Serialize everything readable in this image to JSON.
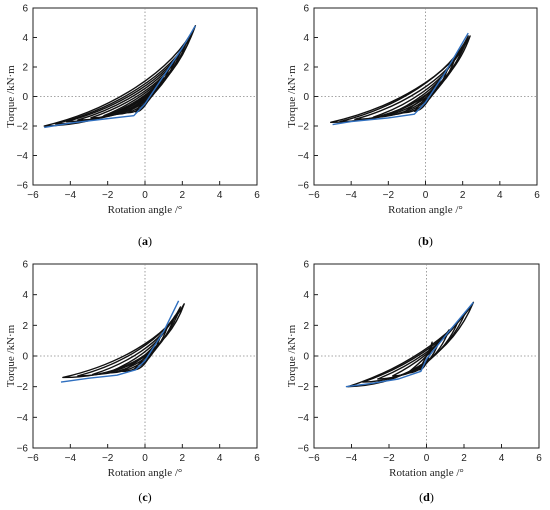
{
  "chart_data": [
    {
      "type": "line",
      "panel_label": "(a)",
      "panel_letter": "a",
      "xlabel": "Rotation angle /°",
      "ylabel": "Torque /kN·m",
      "xlim": [
        -6,
        6
      ],
      "ylim": [
        -6,
        6
      ],
      "xticks": [
        -6,
        -4,
        -2,
        0,
        2,
        4,
        6
      ],
      "yticks": [
        -6,
        -4,
        -2,
        0,
        2,
        4,
        6
      ],
      "reference_lines": "dotted lines at x=0 and y=0",
      "hysteresis_color": "#111111",
      "envelope_color": "#2f6fbf",
      "envelope": {
        "x": [
          -5.4,
          -4.0,
          -2.0,
          -0.6,
          0.0,
          1.0,
          2.0,
          2.7
        ],
        "y": [
          -2.1,
          -1.8,
          -1.5,
          -1.3,
          -0.5,
          1.4,
          3.3,
          4.8
        ]
      },
      "loops": [
        {
          "pos": [
            0.4,
            0.4
          ],
          "neg": [
            -0.5,
            -1.05
          ]
        },
        {
          "pos": [
            0.7,
            0.9
          ],
          "neg": [
            -0.9,
            -1.1
          ]
        },
        {
          "pos": [
            1.0,
            1.4
          ],
          "neg": [
            -1.5,
            -1.2
          ]
        },
        {
          "pos": [
            1.3,
            1.9
          ],
          "neg": [
            -2.2,
            -1.3
          ]
        },
        {
          "pos": [
            1.6,
            2.4
          ],
          "neg": [
            -2.9,
            -1.45
          ]
        },
        {
          "pos": [
            1.9,
            3.0
          ],
          "neg": [
            -3.6,
            -1.6
          ]
        },
        {
          "pos": [
            2.2,
            3.6
          ],
          "neg": [
            -4.2,
            -1.7
          ]
        },
        {
          "pos": [
            2.5,
            4.2
          ],
          "neg": [
            -4.8,
            -1.85
          ]
        },
        {
          "pos": [
            2.7,
            4.8
          ],
          "neg": [
            -5.4,
            -2.0
          ]
        }
      ]
    },
    {
      "type": "line",
      "panel_label": "(b)",
      "panel_letter": "b",
      "xlabel": "Rotation angle /°",
      "ylabel": "Torque /kN·m",
      "xlim": [
        -6,
        6
      ],
      "ylim": [
        -6,
        6
      ],
      "xticks": [
        -6,
        -4,
        -2,
        0,
        2,
        4,
        6
      ],
      "yticks": [
        -6,
        -4,
        -2,
        0,
        2,
        4,
        6
      ],
      "reference_lines": "dotted lines at x=0 and y=0",
      "hysteresis_color": "#111111",
      "envelope_color": "#2f6fbf",
      "envelope": {
        "x": [
          -5.0,
          -4.0,
          -2.0,
          -0.6,
          0.0,
          1.0,
          2.3
        ],
        "y": [
          -1.9,
          -1.7,
          -1.45,
          -1.2,
          -0.4,
          1.5,
          4.3
        ]
      },
      "loops": [
        {
          "pos": [
            0.4,
            0.5
          ],
          "neg": [
            -0.6,
            -1.0
          ]
        },
        {
          "pos": [
            0.8,
            1.2
          ],
          "neg": [
            -1.2,
            -1.1
          ]
        },
        {
          "pos": [
            1.2,
            1.9
          ],
          "neg": [
            -2.0,
            -1.25
          ]
        },
        {
          "pos": [
            1.6,
            2.6
          ],
          "neg": [
            -2.8,
            -1.4
          ]
        },
        {
          "pos": [
            2.0,
            3.3
          ],
          "neg": [
            -3.8,
            -1.55
          ]
        },
        {
          "pos": [
            2.3,
            4.1
          ],
          "neg": [
            -4.6,
            -1.7
          ]
        },
        {
          "pos": [
            2.4,
            4.1
          ],
          "neg": [
            -5.1,
            -1.75
          ]
        }
      ]
    },
    {
      "type": "line",
      "panel_label": "(c)",
      "panel_letter": "c",
      "xlabel": "Rotation angle /°",
      "ylabel": "Torque /kN·m",
      "xlim": [
        -6,
        6
      ],
      "ylim": [
        -6,
        6
      ],
      "xticks": [
        -6,
        -4,
        -2,
        0,
        2,
        4,
        6
      ],
      "yticks": [
        -6,
        -4,
        -2,
        0,
        2,
        4,
        6
      ],
      "reference_lines": "dotted lines at x=0 and y=0",
      "hysteresis_color": "#111111",
      "envelope_color": "#2f6fbf",
      "envelope": {
        "x": [
          -4.5,
          -3.0,
          -1.5,
          -0.5,
          0.0,
          1.0,
          1.8
        ],
        "y": [
          -1.7,
          -1.45,
          -1.25,
          -0.9,
          -0.3,
          1.6,
          3.6
        ]
      },
      "loops": [
        {
          "pos": [
            0.4,
            0.5
          ],
          "neg": [
            -0.6,
            -0.9
          ]
        },
        {
          "pos": [
            0.8,
            1.2
          ],
          "neg": [
            -1.2,
            -1.0
          ]
        },
        {
          "pos": [
            1.2,
            1.9
          ],
          "neg": [
            -2.0,
            -1.1
          ]
        },
        {
          "pos": [
            1.6,
            2.6
          ],
          "neg": [
            -2.8,
            -1.2
          ]
        },
        {
          "pos": [
            1.9,
            3.2
          ],
          "neg": [
            -3.6,
            -1.3
          ]
        },
        {
          "pos": [
            2.1,
            3.4
          ],
          "neg": [
            -4.4,
            -1.4
          ]
        }
      ]
    },
    {
      "type": "line",
      "panel_label": "(d)",
      "panel_letter": "d",
      "xlabel": "Rotation angle /°",
      "ylabel": "Torque /kN·m",
      "xlim": [
        -6,
        6
      ],
      "ylim": [
        -6,
        6
      ],
      "xticks": [
        -6,
        -4,
        -2,
        0,
        2,
        4,
        6
      ],
      "yticks": [
        -6,
        -4,
        -2,
        0,
        2,
        4,
        6
      ],
      "reference_lines": "dotted lines at x=0 and y=0",
      "hysteresis_color": "#111111",
      "envelope_color": "#2f6fbf",
      "envelope": {
        "x": [
          -4.3,
          -3.0,
          -1.5,
          -0.3,
          0.0,
          1.2,
          2.5
        ],
        "y": [
          -2.0,
          -1.8,
          -1.5,
          -1.0,
          -0.2,
          1.6,
          3.5
        ]
      },
      "loops": [
        {
          "pos": [
            0.3,
            0.9
          ],
          "neg": [
            -0.4,
            -0.9
          ]
        },
        {
          "pos": [
            0.7,
            1.1
          ],
          "neg": [
            -1.0,
            -1.1
          ]
        },
        {
          "pos": [
            1.2,
            1.7
          ],
          "neg": [
            -1.8,
            -1.3
          ]
        },
        {
          "pos": [
            1.7,
            2.3
          ],
          "neg": [
            -2.6,
            -1.5
          ]
        },
        {
          "pos": [
            2.1,
            2.9
          ],
          "neg": [
            -3.4,
            -1.7
          ]
        },
        {
          "pos": [
            2.5,
            3.5
          ],
          "neg": [
            -4.2,
            -2.0
          ]
        }
      ]
    }
  ]
}
